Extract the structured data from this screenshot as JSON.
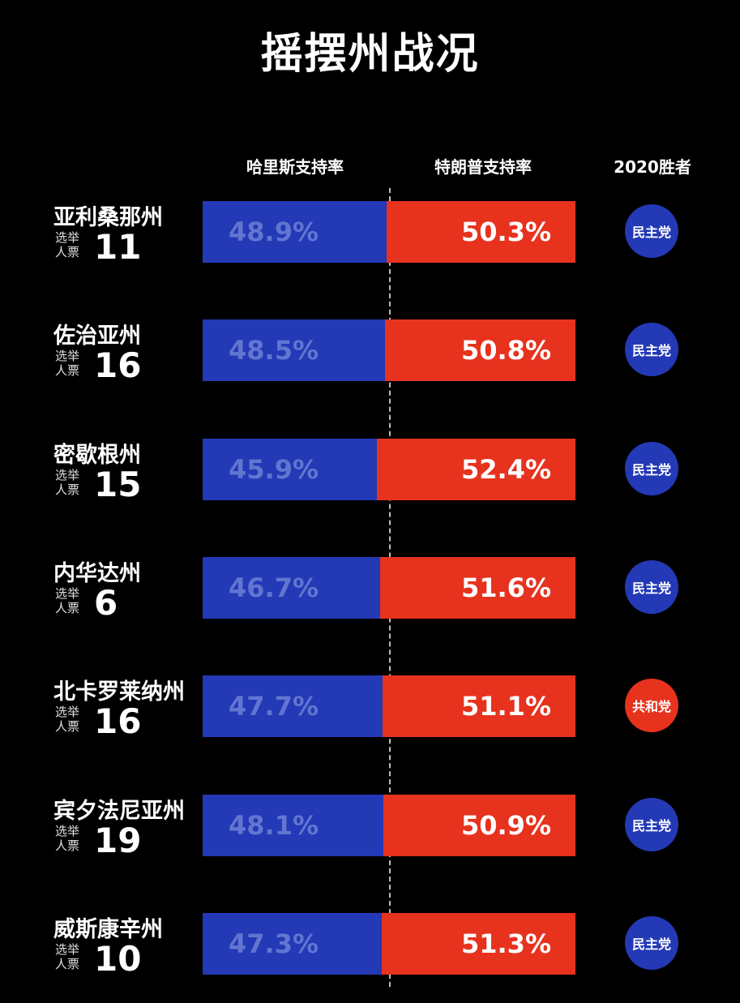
{
  "title": "摇摆州战况",
  "headers": {
    "harris": "哈里斯支持率",
    "trump": "特朗普支持率",
    "winner": "2020胜者"
  },
  "ev_label_1": "选举",
  "ev_label_2": "人票",
  "colors": {
    "harris": "#2339b6",
    "trump": "#e7321e",
    "harris_text": "#6275d0"
  },
  "chart_data": {
    "type": "bar",
    "orientation": "horizontal-stacked",
    "title": "摇摆州战况",
    "categories": [
      "亚利桑那州",
      "佐治亚州",
      "密歇根州",
      "内华达州",
      "北卡罗莱纳州",
      "宾夕法尼亚州",
      "威斯康辛州"
    ],
    "series": [
      {
        "name": "哈里斯支持率",
        "values": [
          48.9,
          48.5,
          45.9,
          46.7,
          47.7,
          48.1,
          47.3
        ]
      },
      {
        "name": "特朗普支持率",
        "values": [
          50.3,
          50.8,
          52.4,
          51.6,
          51.1,
          50.9,
          51.3
        ]
      }
    ],
    "rows": [
      {
        "state": "亚利桑那州",
        "ev": "11",
        "harris": 48.9,
        "harris_label": "48.9%",
        "trump": 50.3,
        "trump_label": "50.3%",
        "winner": "民主党",
        "winner_party": "dem"
      },
      {
        "state": "佐治亚州",
        "ev": "16",
        "harris": 48.5,
        "harris_label": "48.5%",
        "trump": 50.8,
        "trump_label": "50.8%",
        "winner": "民主党",
        "winner_party": "dem"
      },
      {
        "state": "密歇根州",
        "ev": "15",
        "harris": 45.9,
        "harris_label": "45.9%",
        "trump": 52.4,
        "trump_label": "52.4%",
        "winner": "民主党",
        "winner_party": "dem"
      },
      {
        "state": "内华达州",
        "ev": "6",
        "harris": 46.7,
        "harris_label": "46.7%",
        "trump": 51.6,
        "trump_label": "51.6%",
        "winner": "民主党",
        "winner_party": "dem"
      },
      {
        "state": "北卡罗莱纳州",
        "ev": "16",
        "harris": 47.7,
        "harris_label": "47.7%",
        "trump": 51.1,
        "trump_label": "51.1%",
        "winner": "共和党",
        "winner_party": "rep"
      },
      {
        "state": "宾夕法尼亚州",
        "ev": "19",
        "harris": 48.1,
        "harris_label": "48.1%",
        "trump": 50.9,
        "trump_label": "50.9%",
        "winner": "民主党",
        "winner_party": "dem"
      },
      {
        "state": "威斯康辛州",
        "ev": "10",
        "harris": 47.3,
        "harris_label": "47.3%",
        "trump": 51.3,
        "trump_label": "51.3%",
        "winner": "民主党",
        "winner_party": "dem"
      }
    ]
  }
}
